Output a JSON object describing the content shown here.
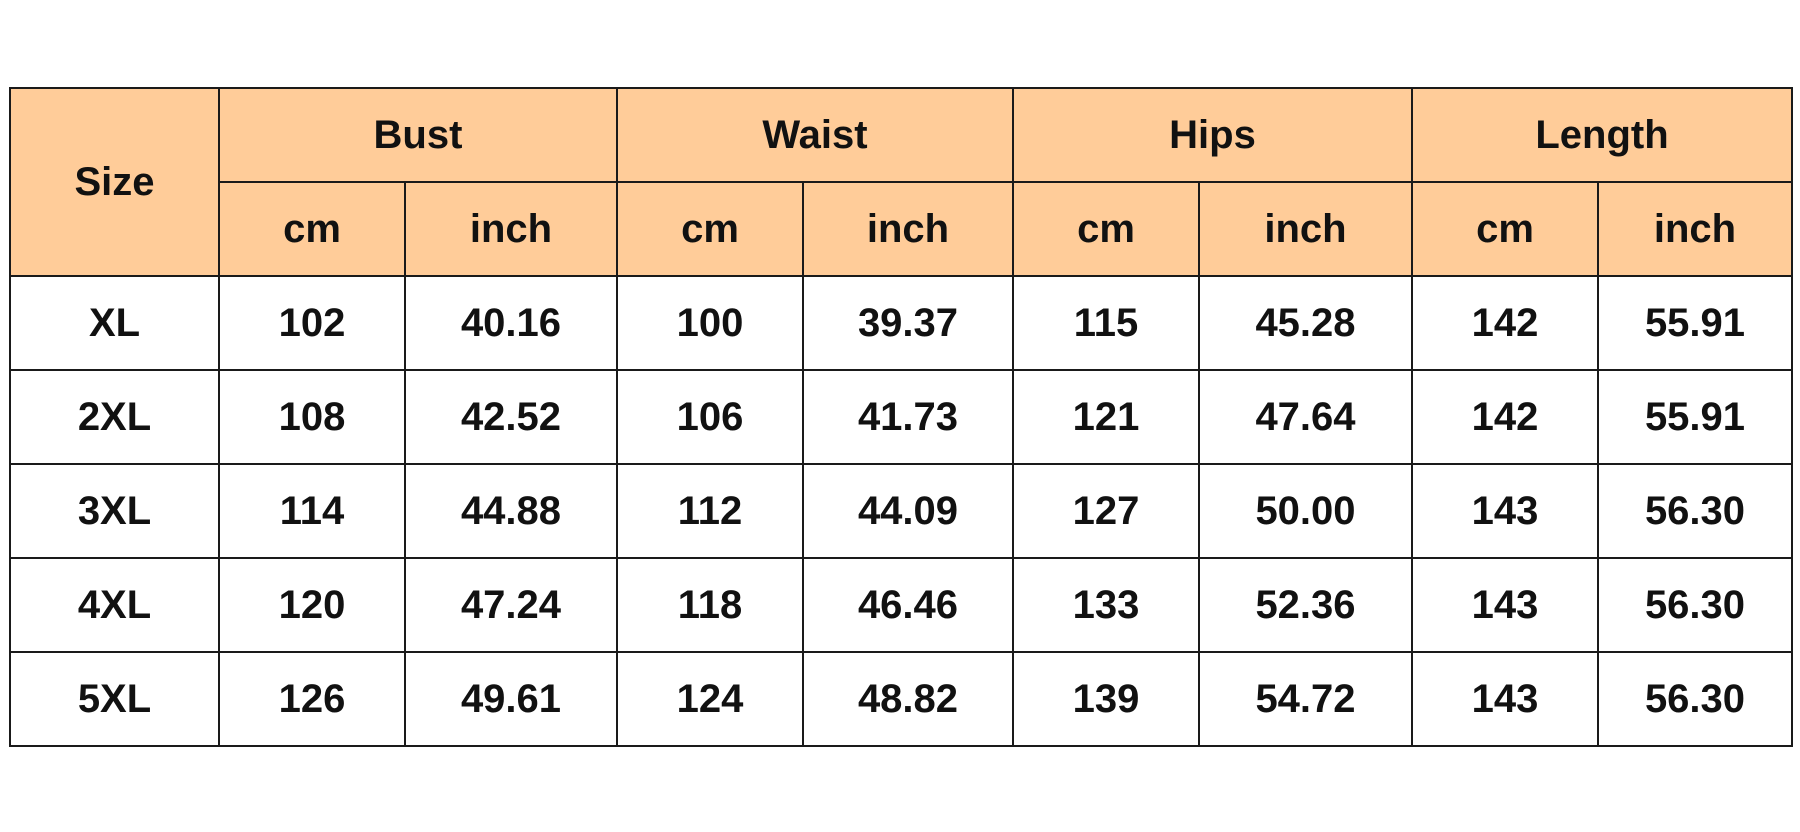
{
  "table": {
    "header_color": "#FFCC99",
    "size_label": "Size",
    "groups": [
      "Bust",
      "Waist",
      "Hips",
      "Length"
    ],
    "units": [
      "cm",
      "inch"
    ],
    "rows": [
      {
        "size": "XL",
        "values": [
          "102",
          "40.16",
          "100",
          "39.37",
          "115",
          "45.28",
          "142",
          "55.91"
        ]
      },
      {
        "size": "2XL",
        "values": [
          "108",
          "42.52",
          "106",
          "41.73",
          "121",
          "47.64",
          "142",
          "55.91"
        ]
      },
      {
        "size": "3XL",
        "values": [
          "114",
          "44.88",
          "112",
          "44.09",
          "127",
          "50.00",
          "143",
          "56.30"
        ]
      },
      {
        "size": "4XL",
        "values": [
          "120",
          "47.24",
          "118",
          "46.46",
          "133",
          "52.36",
          "143",
          "56.30"
        ]
      },
      {
        "size": "5XL",
        "values": [
          "126",
          "49.61",
          "124",
          "48.82",
          "139",
          "54.72",
          "143",
          "56.30"
        ]
      }
    ]
  }
}
